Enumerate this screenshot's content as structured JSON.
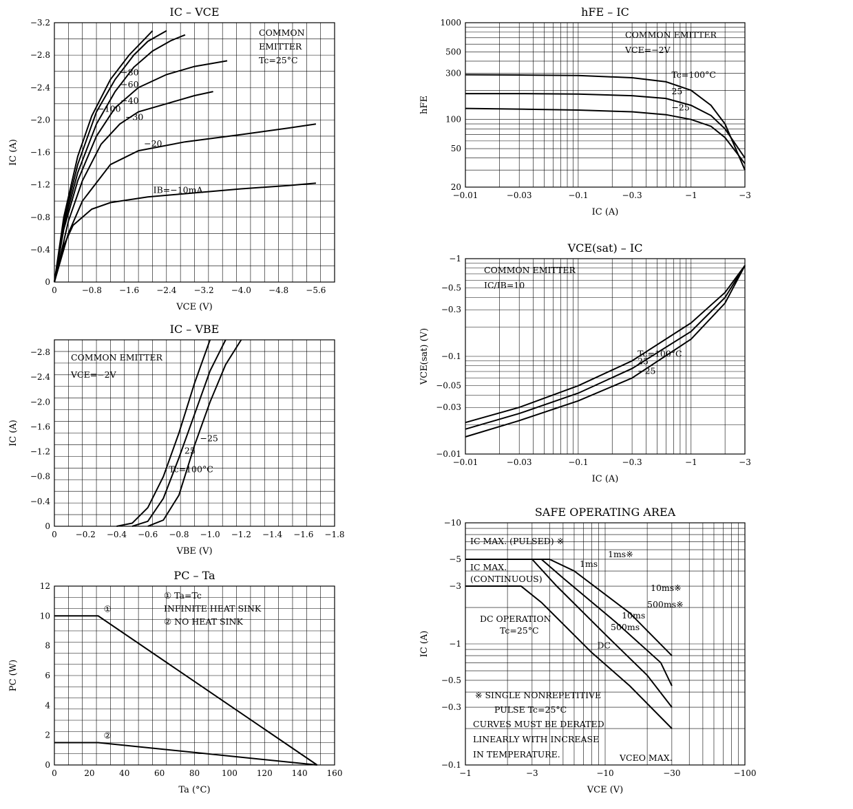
{
  "chart_data": [
    {
      "id": "ic_vce",
      "type": "line",
      "title": "IC – VCE",
      "xlabel": "VCE (V)",
      "ylabel": "IC (A)",
      "xlim": [
        0,
        -6.0
      ],
      "ylim": [
        0,
        -3.2
      ],
      "xticks": [
        "0",
        "−0.8",
        "−1.6",
        "−2.4",
        "−3.2",
        "−4.0",
        "−4.8",
        "−5.6"
      ],
      "yticks": [
        "0",
        "−0.4",
        "−0.8",
        "−1.2",
        "−1.6",
        "−2.0",
        "−2.4",
        "−2.8",
        "−3.2"
      ],
      "notes": [
        "COMMON",
        "EMITTER",
        "Tc=25°C"
      ],
      "series": [
        {
          "name": "IB=−10mA",
          "x": [
            0,
            -0.2,
            -0.4,
            -0.8,
            -1.2,
            -2.0,
            -3.0,
            -4.0,
            -5.0,
            -5.6
          ],
          "y": [
            0,
            -0.45,
            -0.7,
            -0.9,
            -0.98,
            -1.05,
            -1.1,
            -1.15,
            -1.19,
            -1.22
          ]
        },
        {
          "name": "−20",
          "x": [
            0,
            -0.3,
            -0.6,
            -1.2,
            -1.8,
            -2.8,
            -4.0,
            -5.0,
            -5.6
          ],
          "y": [
            0,
            -0.6,
            -1.0,
            -1.45,
            -1.62,
            -1.73,
            -1.82,
            -1.9,
            -1.95
          ]
        },
        {
          "name": "−30",
          "x": [
            0,
            -0.3,
            -0.6,
            -1.0,
            -1.4,
            -1.8,
            -2.4,
            -3.0,
            -3.4
          ],
          "y": [
            0,
            -0.75,
            -1.25,
            -1.7,
            -1.95,
            -2.1,
            -2.2,
            -2.3,
            -2.35
          ]
        },
        {
          "name": "−40",
          "x": [
            0,
            -0.2,
            -0.5,
            -0.9,
            -1.3,
            -1.8,
            -2.4,
            -3.0,
            -3.7
          ],
          "y": [
            0,
            -0.65,
            -1.25,
            -1.8,
            -2.15,
            -2.4,
            -2.56,
            -2.66,
            -2.73
          ]
        },
        {
          "name": "−60",
          "x": [
            0,
            -0.2,
            -0.5,
            -0.9,
            -1.3,
            -1.7,
            -2.1,
            -2.5,
            -2.8
          ],
          "y": [
            0,
            -0.7,
            -1.35,
            -1.95,
            -2.35,
            -2.65,
            -2.85,
            -2.98,
            -3.05
          ]
        },
        {
          "name": "−80",
          "x": [
            0,
            -0.2,
            -0.5,
            -0.9,
            -1.3,
            -1.7,
            -2.0,
            -2.4
          ],
          "y": [
            0,
            -0.75,
            -1.45,
            -2.1,
            -2.5,
            -2.8,
            -2.97,
            -3.1
          ]
        },
        {
          "name": "−100",
          "x": [
            0,
            -0.2,
            -0.5,
            -0.8,
            -1.2,
            -1.6,
            -2.1
          ],
          "y": [
            0,
            -0.8,
            -1.55,
            -2.05,
            -2.5,
            -2.8,
            -3.1
          ]
        }
      ]
    },
    {
      "id": "hfe_ic",
      "type": "line",
      "title": "hFE – IC",
      "xlabel": "IC (A)",
      "ylabel": "hFE",
      "xscale": "log",
      "yscale": "log",
      "xlim": [
        -0.01,
        -3
      ],
      "ylim": [
        20,
        1000
      ],
      "xticks": [
        "−0.01",
        "−0.03",
        "−0.1",
        "−0.3",
        "−1",
        "−3"
      ],
      "yticks": [
        "20",
        "50",
        "100",
        "300",
        "500",
        "1000"
      ],
      "notes": [
        "COMMON EMITTER",
        "VCE=−2V"
      ],
      "series": [
        {
          "name": "Tc=100°C",
          "x": [
            -0.01,
            -0.03,
            -0.1,
            -0.3,
            -0.6,
            -1,
            -1.5,
            -2,
            -3
          ],
          "y": [
            290,
            288,
            285,
            270,
            245,
            200,
            140,
            90,
            30
          ]
        },
        {
          "name": "25",
          "x": [
            -0.01,
            -0.03,
            -0.1,
            -0.3,
            -0.6,
            -1,
            -1.5,
            -2,
            -3
          ],
          "y": [
            185,
            185,
            183,
            176,
            165,
            140,
            110,
            80,
            40
          ]
        },
        {
          "name": "−25",
          "x": [
            -0.01,
            -0.03,
            -0.1,
            -0.3,
            -0.6,
            -1,
            -1.5,
            -2,
            -3
          ],
          "y": [
            130,
            128,
            125,
            120,
            112,
            100,
            85,
            65,
            35
          ]
        }
      ]
    },
    {
      "id": "vcesat_ic",
      "type": "line",
      "title": "VCE(sat) – IC",
      "xlabel": "IC (A)",
      "ylabel": "VCE(sat) (V)",
      "xscale": "log",
      "yscale": "log",
      "xlim": [
        -0.01,
        -3
      ],
      "ylim": [
        -0.01,
        -1
      ],
      "xticks": [
        "−0.01",
        "−0.03",
        "−0.1",
        "−0.3",
        "−1",
        "−3"
      ],
      "yticks": [
        "−0.01",
        "−0.03",
        "−0.05",
        "−0.1",
        "−0.3",
        "−0.5",
        "−1"
      ],
      "notes": [
        "COMMON EMITTER",
        "IC/IB=10"
      ],
      "series": [
        {
          "name": "Tc=100°C",
          "x": [
            -0.01,
            -0.03,
            -0.1,
            -0.3,
            -1,
            -2,
            -3
          ],
          "y": [
            -0.021,
            -0.03,
            -0.05,
            -0.09,
            -0.22,
            -0.45,
            -0.85
          ]
        },
        {
          "name": "25",
          "x": [
            -0.01,
            -0.03,
            -0.1,
            -0.3,
            -1,
            -2,
            -3
          ],
          "y": [
            -0.018,
            -0.026,
            -0.042,
            -0.075,
            -0.18,
            -0.4,
            -0.85
          ]
        },
        {
          "name": "−25",
          "x": [
            -0.01,
            -0.03,
            -0.1,
            -0.3,
            -1,
            -2,
            -3
          ],
          "y": [
            -0.015,
            -0.022,
            -0.035,
            -0.06,
            -0.15,
            -0.35,
            -0.85
          ]
        }
      ]
    },
    {
      "id": "ic_vbe",
      "type": "line",
      "title": "IC – VBE",
      "xlabel": "VBE (V)",
      "ylabel": "IC (A)",
      "xlim": [
        0,
        -1.8
      ],
      "ylim": [
        0,
        -3.0
      ],
      "xticks": [
        "0",
        "−0.2",
        "−0.4",
        "−0.6",
        "−0.8",
        "−1.0",
        "−1.2",
        "−1.4",
        "−1.6",
        "−1.8"
      ],
      "yticks": [
        "0",
        "−0.4",
        "−0.8",
        "−1.2",
        "−1.6",
        "−2.0",
        "−2.4",
        "−2.8"
      ],
      "notes": [
        "COMMON EMITTER",
        "VCE=−2V"
      ],
      "series": [
        {
          "name": "Tc=100°C",
          "x": [
            -0.4,
            -0.5,
            -0.6,
            -0.7,
            -0.8,
            -0.9,
            -1.0
          ],
          "y": [
            0,
            -0.05,
            -0.3,
            -0.8,
            -1.5,
            -2.3,
            -3.0
          ]
        },
        {
          "name": "25",
          "x": [
            -0.5,
            -0.6,
            -0.7,
            -0.8,
            -0.9,
            -1.0,
            -1.1
          ],
          "y": [
            0,
            -0.08,
            -0.45,
            -1.1,
            -1.8,
            -2.5,
            -3.0
          ]
        },
        {
          "name": "−25",
          "x": [
            -0.6,
            -0.7,
            -0.8,
            -0.9,
            -1.0,
            -1.1,
            -1.2
          ],
          "y": [
            0,
            -0.1,
            -0.5,
            -1.3,
            -2.0,
            -2.6,
            -3.0
          ]
        }
      ]
    },
    {
      "id": "pc_ta",
      "type": "line",
      "title": "PC – Ta",
      "xlabel": "Ta (°C)",
      "ylabel": "PC (W)",
      "xlim": [
        0,
        160
      ],
      "ylim": [
        0,
        12
      ],
      "xticks": [
        "0",
        "20",
        "40",
        "60",
        "80",
        "100",
        "120",
        "140",
        "160"
      ],
      "yticks": [
        "0",
        "2",
        "4",
        "6",
        "8",
        "10",
        "12"
      ],
      "notes": [
        "① Ta=Tc",
        "INFINITE HEAT SINK",
        "② NO HEAT SINK"
      ],
      "series": [
        {
          "name": "①",
          "x": [
            0,
            25,
            150
          ],
          "y": [
            10,
            10,
            0
          ]
        },
        {
          "name": "②",
          "x": [
            0,
            25,
            150
          ],
          "y": [
            1.5,
            1.5,
            0
          ]
        }
      ]
    },
    {
      "id": "soa",
      "type": "line",
      "title": "SAFE OPERATING AREA",
      "xlabel": "VCE (V)",
      "ylabel": "IC (A)",
      "xscale": "log",
      "yscale": "log",
      "xlim": [
        -1,
        -100
      ],
      "ylim": [
        -0.1,
        -10
      ],
      "xticks": [
        "−1",
        "−3",
        "−10",
        "−30",
        "−100"
      ],
      "yticks": [
        "−0.1",
        "−0.3",
        "−0.5",
        "−1",
        "−3",
        "−5",
        "−10"
      ],
      "notes": [
        "IC MAX. (PULSED) ※",
        "IC MAX.",
        "(CONTINUOUS)",
        "1ms※",
        "10ms※",
        "500ms※",
        "DC OPERATION",
        "Tc=25°C",
        "※ SINGLE NONREPETITIVE",
        "PULSE Tc=25°C",
        "CURVES MUST BE DERATED",
        "LINEARLY WITH INCREASE",
        "IN TEMPERATURE.",
        "VCEO MAX."
      ],
      "series": [
        {
          "name": "DC",
          "x": [
            -1,
            -2.5,
            -3.5,
            -8,
            -15,
            -30
          ],
          "y": [
            -3,
            -3,
            -2.2,
            -0.85,
            -0.45,
            -0.2
          ]
        },
        {
          "name": "500ms",
          "x": [
            -1,
            -3,
            -4.5,
            -10,
            -20,
            -30
          ],
          "y": [
            -5,
            -5,
            -3,
            -1.2,
            -0.55,
            -0.3
          ]
        },
        {
          "name": "10ms",
          "x": [
            -1,
            -3.5,
            -5,
            -12,
            -25,
            -30
          ],
          "y": [
            -5,
            -5,
            -3.5,
            -1.5,
            -0.7,
            -0.45
          ]
        },
        {
          "name": "1ms",
          "x": [
            -1,
            -4,
            -6,
            -15,
            -30
          ],
          "y": [
            -5,
            -5,
            -4,
            -1.8,
            -0.8
          ]
        }
      ]
    }
  ],
  "colors": {
    "ink": "#000000",
    "paper": "#ffffff"
  }
}
